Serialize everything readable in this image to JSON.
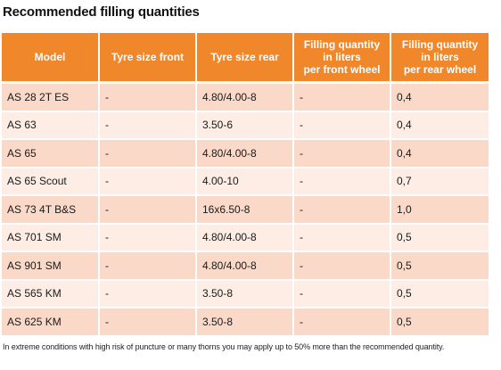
{
  "title": "Recommended filling quantities",
  "table": {
    "headers": [
      "Model",
      "Tyre size front",
      "Tyre size rear",
      "Filling quantity\nin liters\nper front wheel",
      "Filling quantity\nin liters\nper rear wheel"
    ],
    "rows": [
      [
        "AS 28 2T ES",
        "-",
        "4.80/4.00-8",
        "-",
        "0,4"
      ],
      [
        "AS 63",
        "-",
        "3.50-6",
        "-",
        "0,4"
      ],
      [
        "AS 65",
        "-",
        "4.80/4.00-8",
        "-",
        "0,4"
      ],
      [
        "AS 65 Scout",
        "-",
        "4.00-10",
        "-",
        "0,7"
      ],
      [
        "AS 73 4T B&S",
        "-",
        "16x6.50-8",
        "-",
        "1,0"
      ],
      [
        "AS 701 SM",
        "-",
        "4.80/4.00-8",
        "-",
        "0,5"
      ],
      [
        "AS 901 SM",
        "-",
        "4.80/4.00-8",
        "-",
        "0,5"
      ],
      [
        "AS 565 KM",
        "-",
        "3.50-8",
        "-",
        "0,5"
      ],
      [
        "AS 625 KM",
        "-",
        "3.50-8",
        "-",
        "0,5"
      ]
    ]
  },
  "footnote": "In extreme conditions with high risk of puncture or many thorns you may apply up to 50% more than the recommended quantity.",
  "colors": {
    "header_bg": "#f0872a",
    "row_odd": "#fbd9c8",
    "row_even": "#fdede4"
  }
}
